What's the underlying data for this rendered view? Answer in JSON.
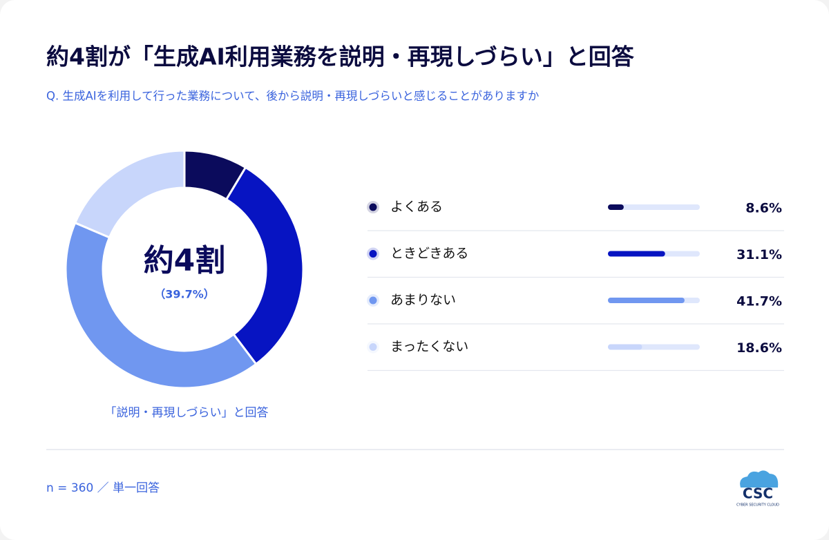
{
  "chart_data": {
    "type": "donut",
    "title": "約4割が「生成AI利用業務を説明・再現しづらい」と回答",
    "subtitle": "Q. 生成AIを利用して行った業務について、後から説明・再現しづらいと感じることがありますか",
    "categories": [
      "よくある",
      "ときどきある",
      "あまりない",
      "まったくない"
    ],
    "values": [
      8.6,
      31.1,
      41.7,
      18.6
    ],
    "value_labels": [
      "8.6%",
      "31.1%",
      "41.7%",
      "18.6%"
    ],
    "colors": [
      "#0b0b5c",
      "#0714c2",
      "#7097f0",
      "#c8d6fb"
    ],
    "center_label": "約4割",
    "center_sublabel": "（39.7%）",
    "caption": "「説明・再現しづらい」と回答",
    "footnote": "n = 360 ／ 単一回答",
    "logo": {
      "text": "CSC",
      "subtext": "CYBER SECURITY CLOUD"
    }
  }
}
